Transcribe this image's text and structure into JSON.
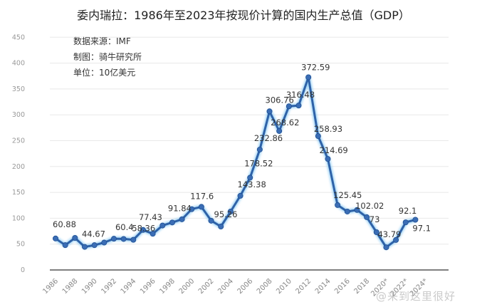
{
  "header": {
    "title": "委内瑞拉：1986年至2023年按现价计算的国内生产总值（GDP）"
  },
  "annotations": {
    "source": "数据来源：IMF",
    "maker": "制图：骑牛研究所",
    "unit": "单位：10亿美元"
  },
  "watermark": "@来到这里很好",
  "colors": {
    "line": "#2e62a8",
    "marker": "#3a6db5",
    "glow": "#9fd3f5",
    "grid": "#e8e8e8",
    "axis": "#555555"
  },
  "chart_data": {
    "type": "line",
    "title": "委内瑞拉：1986年至2023年按现价计算的国内生产总值（GDP）",
    "xlabel": "",
    "ylabel": "10亿美元",
    "ylim": [
      0,
      450
    ],
    "yticks": [
      0,
      50,
      100,
      150,
      200,
      250,
      300,
      350,
      400,
      450
    ],
    "xtick_labels": [
      "1986",
      "1988",
      "1990",
      "1992",
      "1994",
      "1996",
      "1998",
      "2000",
      "2002",
      "2004",
      "2006",
      "2008",
      "2010",
      "2012",
      "2014",
      "2016",
      "2018",
      "2020*",
      "2022*",
      "2024*"
    ],
    "grid": true,
    "legend": "none",
    "x": [
      1986,
      1987,
      1988,
      1989,
      1990,
      1991,
      1992,
      1993,
      1994,
      1995,
      1996,
      1997,
      1998,
      1999,
      2000,
      2001,
      2002,
      2003,
      2004,
      2005,
      2006,
      2007,
      2008,
      2009,
      2010,
      2011,
      2012,
      2013,
      2014,
      2015,
      2016,
      2017,
      2018,
      2019,
      2020,
      2021,
      2022,
      2023,
      2024
    ],
    "series": [
      {
        "name": "GDP",
        "values": [
          60.88,
          48,
          62,
          44.67,
          48,
          53,
          60.4,
          60,
          58.36,
          77.43,
          70,
          86,
          91.84,
          98,
          117.6,
          122,
          95.26,
          84,
          113,
          143.38,
          178.52,
          232.86,
          306.76,
          268.62,
          316.48,
          318,
          372.59,
          258.93,
          214.69,
          125.45,
          113,
          116,
          102.02,
          73,
          43.79,
          58,
          92.1,
          97.1,
          null
        ]
      }
    ],
    "data_labels": [
      {
        "x": 1986,
        "text": "60.88"
      },
      {
        "x": 1989,
        "text": "44.67"
      },
      {
        "x": 1992,
        "text": "60.4"
      },
      {
        "x": 1994,
        "text": "58.36"
      },
      {
        "x": 1995,
        "text": "77.43"
      },
      {
        "x": 1998,
        "text": "91.84"
      },
      {
        "x": 2000,
        "text": "117.6"
      },
      {
        "x": 2002,
        "text": "95.26"
      },
      {
        "x": 2005,
        "text": "143.38"
      },
      {
        "x": 2006,
        "text": "178.52"
      },
      {
        "x": 2007,
        "text": "232.86"
      },
      {
        "x": 2008,
        "text": "306.76"
      },
      {
        "x": 2009,
        "text": "268.62"
      },
      {
        "x": 2010,
        "text": "316.48"
      },
      {
        "x": 2012,
        "text": "372.59"
      },
      {
        "x": 2013,
        "text": "258.93"
      },
      {
        "x": 2014,
        "text": "214.69"
      },
      {
        "x": 2015,
        "text": "125.45"
      },
      {
        "x": 2018,
        "text": "102.02"
      },
      {
        "x": 2019,
        "text": "73"
      },
      {
        "x": 2020,
        "text": "43.79"
      },
      {
        "x": 2022,
        "text": "92.1"
      },
      {
        "x": 2023,
        "text": "97.1"
      }
    ]
  }
}
